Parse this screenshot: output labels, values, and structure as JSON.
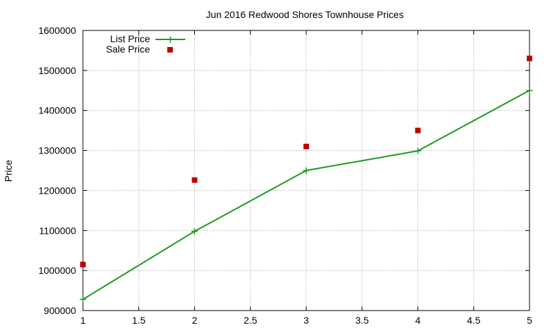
{
  "chart_data": {
    "type": "line",
    "title": "Jun 2016 Redwood Shores Townhouse Prices",
    "xlabel": "",
    "ylabel": "Price",
    "xlim": [
      1,
      5
    ],
    "ylim": [
      900000,
      1600000
    ],
    "x_ticks": [
      "1",
      "1.5",
      "2",
      "2.5",
      "3",
      "3.5",
      "4",
      "4.5",
      "5"
    ],
    "y_ticks": [
      "900000",
      "1000000",
      "1100000",
      "1200000",
      "1300000",
      "1400000",
      "1500000",
      "1600000"
    ],
    "grid": true,
    "legend_position": "top-left",
    "series": [
      {
        "name": "List Price",
        "style": "line-with-plus-markers",
        "color": "#1a9a1a",
        "x": [
          1,
          2,
          3,
          4,
          5
        ],
        "values": [
          928000,
          1098000,
          1250000,
          1299000,
          1450000
        ]
      },
      {
        "name": "Sale Price",
        "style": "square-points",
        "color": "#c00000",
        "x": [
          1,
          2,
          3,
          4,
          5
        ],
        "values": [
          1015000,
          1226000,
          1310000,
          1350000,
          1530000
        ]
      }
    ]
  }
}
